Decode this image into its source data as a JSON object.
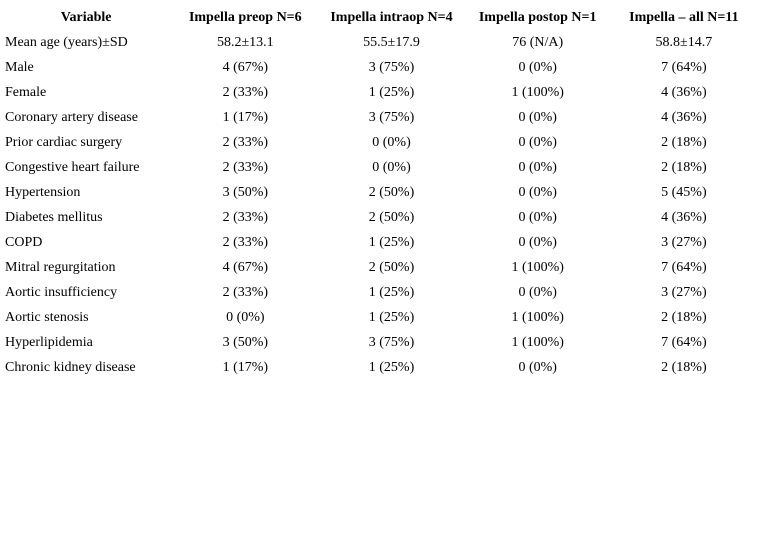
{
  "table": {
    "columns": [
      "Variable",
      "Impella preop N=6",
      "Impella intraop N=4",
      "Impella postop N=1",
      "Impella – all N=11"
    ],
    "rows": [
      {
        "label": "Mean age (years)±SD",
        "values": [
          "58.2±13.1",
          "55.5±17.9",
          "76 (N/A)",
          "58.8±14.7"
        ]
      },
      {
        "label": "Male",
        "values": [
          "4 (67%)",
          "3 (75%)",
          "0 (0%)",
          "7 (64%)"
        ]
      },
      {
        "label": "Female",
        "values": [
          "2 (33%)",
          "1 (25%)",
          "1 (100%)",
          "4 (36%)"
        ]
      },
      {
        "label": "Coronary artery disease",
        "values": [
          "1 (17%)",
          "3 (75%)",
          "0 (0%)",
          "4 (36%)"
        ]
      },
      {
        "label": "Prior cardiac surgery",
        "values": [
          "2 (33%)",
          "0 (0%)",
          "0 (0%)",
          "2 (18%)"
        ]
      },
      {
        "label": "Congestive heart failure",
        "values": [
          "2 (33%)",
          "0 (0%)",
          "0 (0%)",
          "2 (18%)"
        ]
      },
      {
        "label": "Hypertension",
        "values": [
          "3 (50%)",
          "2 (50%)",
          "0 (0%)",
          "5 (45%)"
        ]
      },
      {
        "label": "Diabetes mellitus",
        "values": [
          "2 (33%)",
          "2 (50%)",
          "0 (0%)",
          "4 (36%)"
        ]
      },
      {
        "label": "COPD",
        "values": [
          "2 (33%)",
          "1 (25%)",
          "0 (0%)",
          "3 (27%)"
        ]
      },
      {
        "label": "Mitral regurgitation",
        "values": [
          "4 (67%)",
          "2 (50%)",
          "1 (100%)",
          "7 (64%)"
        ]
      },
      {
        "label": "Aortic insufficiency",
        "values": [
          "2 (33%)",
          "1 (25%)",
          "0 (0%)",
          "3 (27%)"
        ]
      },
      {
        "label": "Aortic stenosis",
        "values": [
          "0 (0%)",
          "1 (25%)",
          "1 (100%)",
          "2 (18%)"
        ]
      },
      {
        "label": "Hyperlipidemia",
        "values": [
          "3 (50%)",
          "3 (75%)",
          "1 (100%)",
          "7 (64%)"
        ]
      },
      {
        "label": "Chronic kidney disease",
        "values": [
          "1 (17%)",
          "1 (25%)",
          "0 (0%)",
          "2 (18%)"
        ]
      }
    ]
  }
}
